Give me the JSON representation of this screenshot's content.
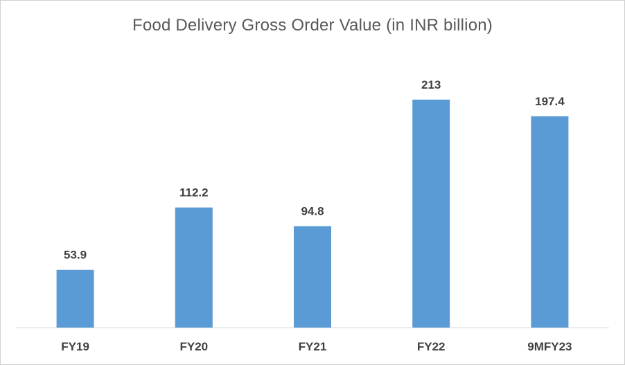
{
  "chart_data": {
    "type": "bar",
    "title": "Food Delivery Gross Order Value (in INR billion)",
    "categories": [
      "FY19",
      "FY20",
      "FY21",
      "FY22",
      "9MFY23"
    ],
    "values": [
      53.9,
      112.2,
      94.8,
      213,
      197.4
    ],
    "value_labels": [
      "53.9",
      "112.2",
      "94.8",
      "213",
      "197.4"
    ],
    "xlabel": "",
    "ylabel": "",
    "ylim": [
      0,
      250
    ],
    "grid": false,
    "legend": "none",
    "bar_color": "#5B9BD5",
    "axis_color": "#d9d9d9",
    "label_color": "#404040"
  }
}
